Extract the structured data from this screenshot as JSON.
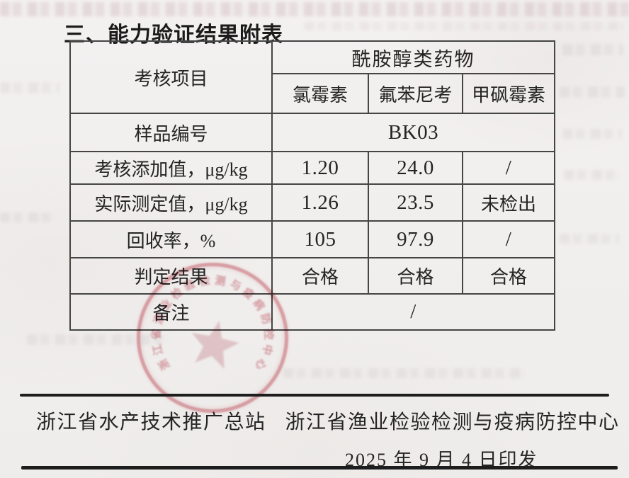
{
  "title": "三、能力验证结果附表",
  "table": {
    "corner_header": "考核项目",
    "group_header": "酰胺醇类药物",
    "columns": [
      "氯霉素",
      "氟苯尼考",
      "甲砜霉素"
    ],
    "rows": [
      {
        "label": "样品编号",
        "value": "BK03"
      },
      {
        "label": "考核添加值，μg/kg",
        "values": [
          "1.20",
          "24.0",
          "/"
        ]
      },
      {
        "label": "实际测定值，μg/kg",
        "values": [
          "1.26",
          "23.5",
          "未检出"
        ]
      },
      {
        "label": "回收率，%",
        "values": [
          "105",
          "97.9",
          "/"
        ]
      },
      {
        "label": "判定结果",
        "values": [
          "合格",
          "合格",
          "合格"
        ]
      },
      {
        "label": "备注",
        "value": "/"
      }
    ]
  },
  "stamp": {
    "arc_text": "浙江省渔业检验检测与疫病防控中心",
    "color": "#cc5866"
  },
  "footer": {
    "org_left": "浙江省水产技术推广总站",
    "org_right": "浙江省渔业检验检测与疫病防控中心",
    "date_line": "2025 年 9 月 4 日印发"
  }
}
